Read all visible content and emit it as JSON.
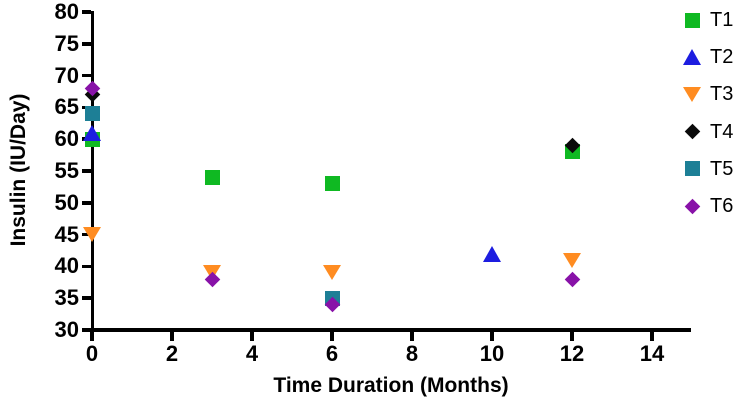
{
  "chart_data": {
    "type": "scatter",
    "title": "",
    "xlabel": "Time Duration (Months)",
    "ylabel": "Insulin (IU/Day)",
    "xlim": [
      0,
      15
    ],
    "ylim": [
      30,
      80
    ],
    "x_ticks": [
      0,
      2,
      4,
      6,
      8,
      10,
      12,
      14
    ],
    "y_ticks": [
      30,
      35,
      40,
      45,
      50,
      55,
      60,
      65,
      70,
      75,
      80
    ],
    "grid": false,
    "legend_position": "outside-top-right",
    "background_color": "#ffffff",
    "axis_color": "#000000",
    "series": [
      {
        "name": "T1",
        "marker": "square",
        "color": "#0fb922",
        "points": [
          [
            0,
            60
          ],
          [
            3,
            54
          ],
          [
            6,
            53
          ],
          [
            12,
            58
          ]
        ]
      },
      {
        "name": "T2",
        "marker": "triangle-up",
        "color": "#1d1de0",
        "points": [
          [
            0,
            61
          ],
          [
            10,
            42
          ]
        ]
      },
      {
        "name": "T3",
        "marker": "triangle-down",
        "color": "#ff8c21",
        "points": [
          [
            0,
            45
          ],
          [
            3,
            39
          ],
          [
            6,
            39
          ],
          [
            12,
            41
          ]
        ]
      },
      {
        "name": "T4",
        "marker": "diamond",
        "color": "#0a0a0a",
        "points": [
          [
            0,
            67
          ],
          [
            12,
            59
          ]
        ]
      },
      {
        "name": "T5",
        "marker": "square",
        "color": "#1d7f96",
        "points": [
          [
            0,
            64
          ],
          [
            6,
            35
          ]
        ]
      },
      {
        "name": "T6",
        "marker": "diamond",
        "color": "#8812a8",
        "points": [
          [
            0,
            68
          ],
          [
            3,
            38
          ],
          [
            6,
            34
          ],
          [
            12,
            38
          ]
        ]
      }
    ]
  }
}
